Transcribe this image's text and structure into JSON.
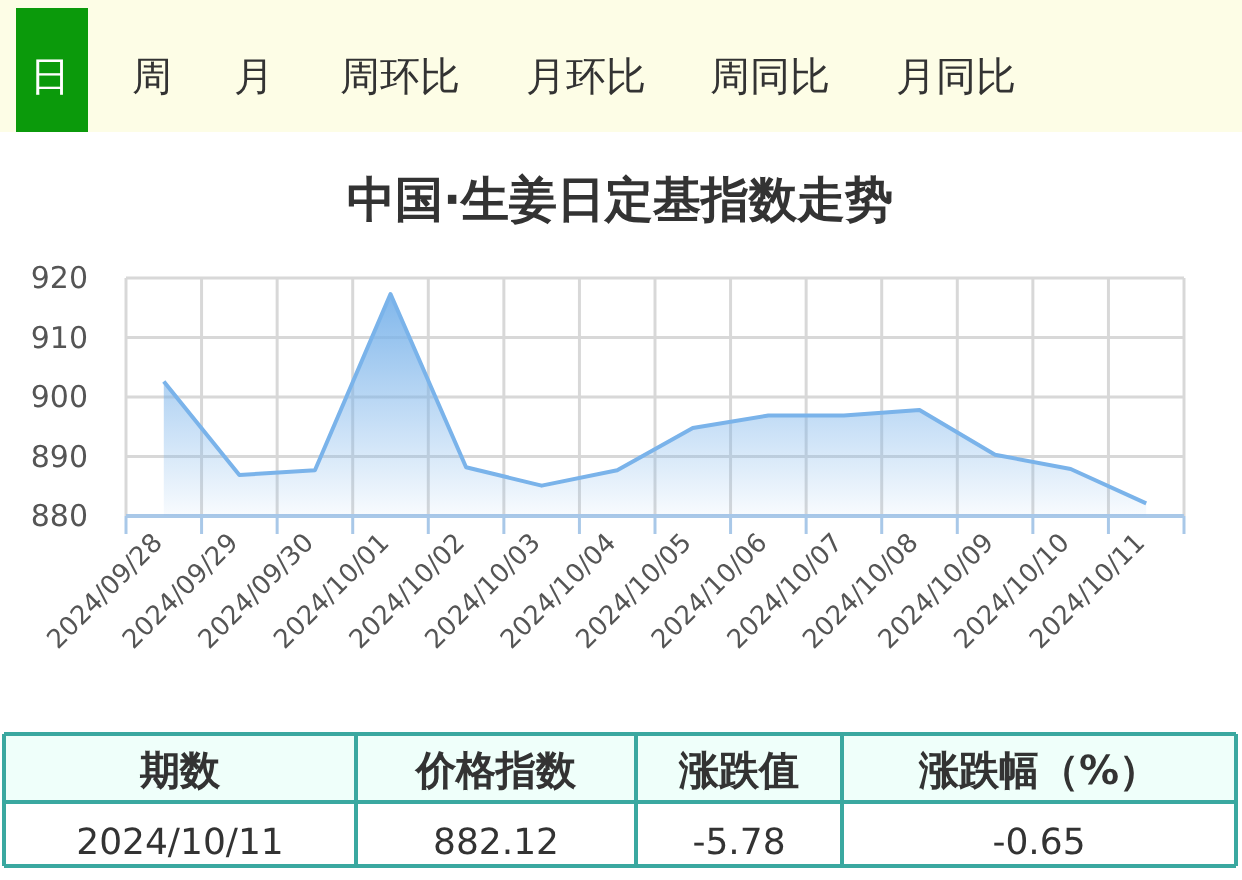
{
  "chart_data": {
    "type": "area",
    "title": "中国·生姜日定基指数走势",
    "categories": [
      "2024/09/28",
      "2024/09/29",
      "2024/09/30",
      "2024/10/01",
      "2024/10/02",
      "2024/10/03",
      "2024/10/04",
      "2024/10/05",
      "2024/10/06",
      "2024/10/07",
      "2024/10/08",
      "2024/10/09",
      "2024/10/10",
      "2024/10/11"
    ],
    "series": [
      {
        "color": "#7ab3ea",
        "values": [
          902.6,
          886.9,
          887.7,
          917.3,
          888.2,
          885.1,
          887.7,
          894.8,
          896.9,
          896.9,
          897.8,
          890.3,
          887.9,
          882.12
        ]
      }
    ],
    "ylim": [
      880,
      920
    ],
    "yticks": [
      880,
      890,
      900,
      910,
      920
    ],
    "grid": true,
    "marker": "none",
    "line_style": "solid",
    "annotations": [
      "日",
      "周",
      "月",
      "周环比",
      "月环比",
      "周同比",
      "月同比",
      "期数",
      "价格指数",
      "涨跌值",
      "涨跌幅（%）",
      "2024/10/11",
      "882.12",
      "-5.78",
      "-0.65"
    ]
  }
}
